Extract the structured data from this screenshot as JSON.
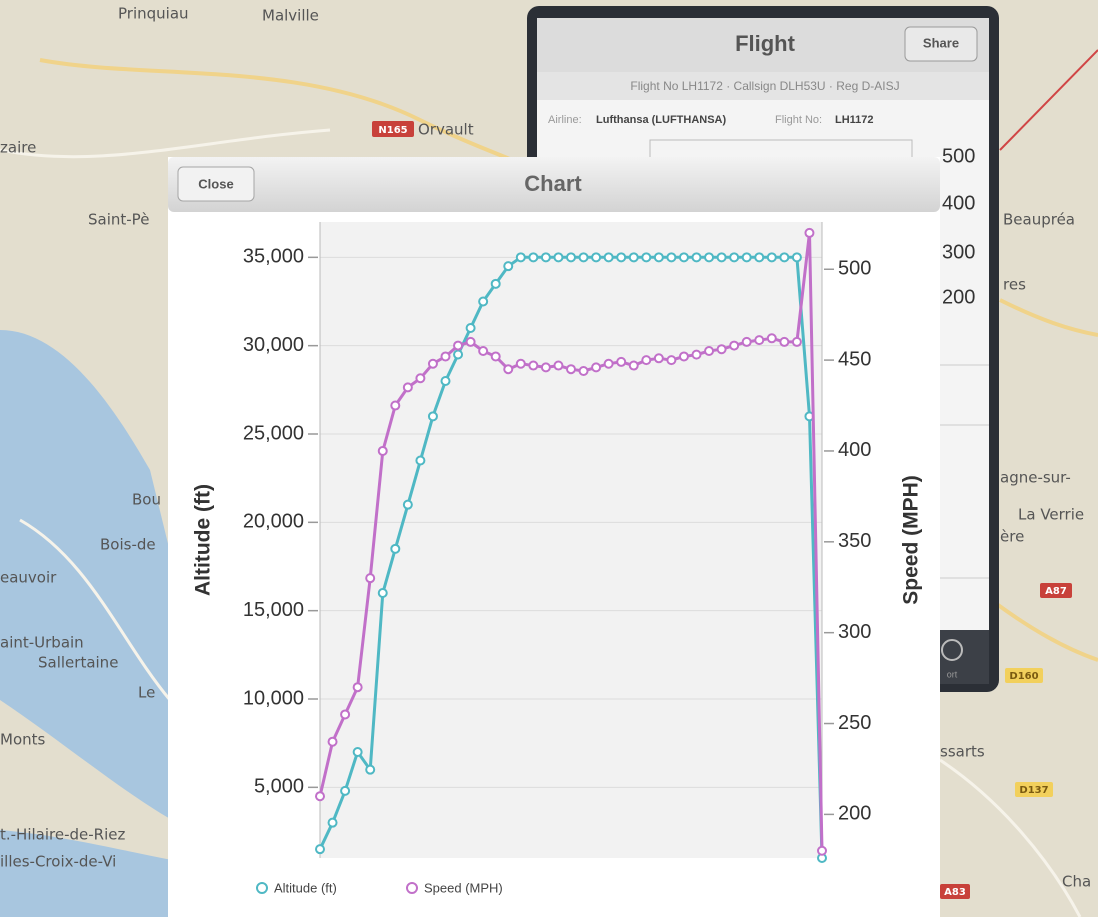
{
  "map": {
    "labels": [
      "Prinquiau",
      "Malville",
      "Orvault",
      "N165",
      "zaire",
      "Saint-Pè",
      "Beaupréa",
      "res",
      "Bou",
      "Bois-de",
      "eauvoir",
      "aint-Urbain",
      "Sallertaine",
      "Le",
      "Monts",
      "t.-Hilaire-de-Riez",
      "illes-Croix-de-Vi",
      "agne-sur-",
      "La Verrie",
      "ère",
      "A87",
      "D160",
      "ssarts",
      "D137",
      "Cha",
      "A83"
    ]
  },
  "flight_panel": {
    "title": "Flight",
    "share": "Share",
    "subtitle": "Flight No LH1172 · Callsign DLH53U · Reg D-AISJ",
    "airline_label": "Airline:",
    "airline": "Lufthansa (LUFTHANSA)",
    "flight_no_label": "Flight No:",
    "flight_no": "LH1172",
    "axis_labels": [
      "500",
      "400",
      "300",
      "200"
    ],
    "tab_label": "ort"
  },
  "chart_modal": {
    "title": "Chart",
    "close": "Close"
  },
  "chart_data": {
    "type": "line",
    "y_label": "Altitude (ft)",
    "y2_label": "Speed (MPH)",
    "ylim": [
      1000,
      37000
    ],
    "yticks": [
      {
        "value": 5000,
        "label": "5,000"
      },
      {
        "value": 10000,
        "label": "10,000"
      },
      {
        "value": 15000,
        "label": "15,000"
      },
      {
        "value": 20000,
        "label": "20,000"
      },
      {
        "value": 25000,
        "label": "25,000"
      },
      {
        "value": 30000,
        "label": "30,000"
      },
      {
        "value": 35000,
        "label": "35,000"
      }
    ],
    "y2lim": [
      176,
      526
    ],
    "y2ticks": [
      200,
      250,
      300,
      350,
      400,
      450,
      500
    ],
    "grid": true,
    "legend": "bottom",
    "series": [
      {
        "name": "Altitude (ft)",
        "color": "#4fb8c4",
        "values": [
          1500,
          3000,
          4800,
          7000,
          6000,
          16000,
          18500,
          21000,
          23500,
          26000,
          28000,
          29500,
          31000,
          32500,
          33500,
          34500,
          35000,
          35000,
          35000,
          35000,
          35000,
          35000,
          35000,
          35000,
          35000,
          35000,
          35000,
          35000,
          35000,
          35000,
          35000,
          35000,
          35000,
          35000,
          35000,
          35000,
          35000,
          35000,
          35000,
          26000,
          1000
        ]
      },
      {
        "name": "Speed (MPH)",
        "color": "#c170c9",
        "axis": "y2",
        "values": [
          210,
          240,
          255,
          270,
          330,
          400,
          425,
          435,
          440,
          448,
          452,
          458,
          460,
          455,
          452,
          445,
          448,
          447,
          446,
          447,
          445,
          444,
          446,
          448,
          449,
          447,
          450,
          451,
          450,
          452,
          453,
          455,
          456,
          458,
          460,
          461,
          462,
          460,
          460,
          520,
          180
        ]
      }
    ]
  }
}
